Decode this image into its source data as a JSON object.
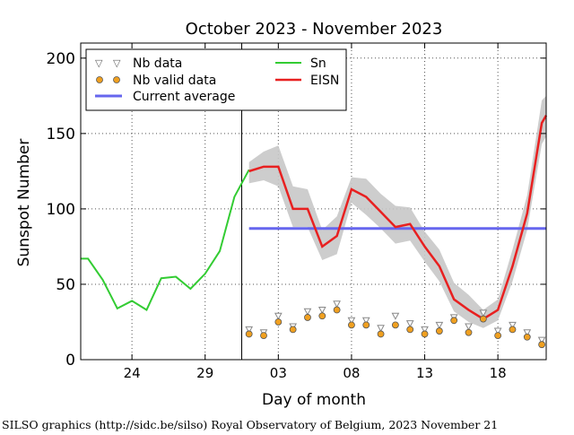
{
  "chart_data": {
    "type": "line",
    "title": "October 2023 - November 2023",
    "xlabel": "Day of month",
    "ylabel": "Sunspot Number",
    "xlim": [
      20.5,
      52.3
    ],
    "ylim": [
      0,
      210
    ],
    "xticks": [
      {
        "pos": 24,
        "label": "24"
      },
      {
        "pos": 29,
        "label": "29"
      },
      {
        "pos": 34,
        "label": "03"
      },
      {
        "pos": 39,
        "label": "08"
      },
      {
        "pos": 44,
        "label": "13"
      },
      {
        "pos": 49,
        "label": "18"
      }
    ],
    "yticks": [
      0,
      50,
      100,
      150,
      200
    ],
    "grid": true,
    "legend_position": "top-left",
    "legend": {
      "nb_data": "Nb data",
      "nb_valid": "Nb valid data",
      "current_average": "Current average",
      "sn": "Sn",
      "eisn": "EISN"
    },
    "month_boundary_x": 31.5,
    "sn": {
      "x": [
        20.5,
        21,
        22,
        23,
        24,
        25,
        26,
        27,
        28,
        29,
        30,
        31,
        32
      ],
      "y": [
        67,
        67,
        53,
        34,
        39,
        33,
        54,
        55,
        47,
        57,
        72,
        108,
        126
      ]
    },
    "eisn": {
      "x": [
        32,
        33,
        34,
        35,
        36,
        37,
        38,
        39,
        40,
        41,
        42,
        43,
        44,
        45,
        46,
        47,
        48,
        49,
        50,
        51,
        52,
        52.3
      ],
      "y": [
        125,
        128,
        128,
        100,
        100,
        75,
        82,
        113,
        108,
        98,
        88,
        90,
        75,
        62,
        40,
        33,
        27,
        33,
        62,
        97,
        157,
        162
      ]
    },
    "eisn_band": {
      "upper": [
        131,
        138,
        142,
        115,
        113,
        86,
        95,
        121,
        120,
        110,
        102,
        101,
        85,
        73,
        51,
        43,
        33,
        40,
        73,
        109,
        172,
        175
      ],
      "lower": [
        117,
        119,
        115,
        88,
        88,
        66,
        70,
        104,
        96,
        87,
        77,
        79,
        65,
        52,
        32,
        25,
        21,
        26,
        52,
        86,
        143,
        148
      ]
    },
    "current_average": {
      "value": 87,
      "x_start": 32,
      "x_end": 52.3
    },
    "nb_data": {
      "x": [
        32,
        33,
        34,
        35,
        36,
        37,
        38,
        39,
        40,
        41,
        42,
        43,
        44,
        45,
        46,
        47,
        48,
        49,
        50,
        51,
        52
      ],
      "y": [
        20,
        18,
        29,
        22,
        32,
        33,
        37,
        26,
        26,
        21,
        29,
        24,
        20,
        23,
        28,
        22,
        31,
        19,
        23,
        18,
        13
      ]
    },
    "nb_valid": {
      "x": [
        32,
        33,
        34,
        35,
        36,
        37,
        38,
        39,
        40,
        41,
        42,
        43,
        44,
        45,
        46,
        47,
        48,
        49,
        50,
        51,
        52
      ],
      "y": [
        17,
        16,
        25,
        20,
        28,
        29,
        33,
        23,
        23,
        17,
        23,
        20,
        17,
        19,
        26,
        18,
        27,
        16,
        20,
        15,
        10
      ]
    },
    "colors": {
      "sn": "#33cc33",
      "eisn": "#e82020",
      "band": "#c8c8c8",
      "average": "#6666ee",
      "valid_marker": "#f0a020",
      "nb_marker": "#888888"
    },
    "footer": "SILSO graphics (http://sidc.be/silso) Royal Observatory of Belgium, 2023 November 21"
  }
}
